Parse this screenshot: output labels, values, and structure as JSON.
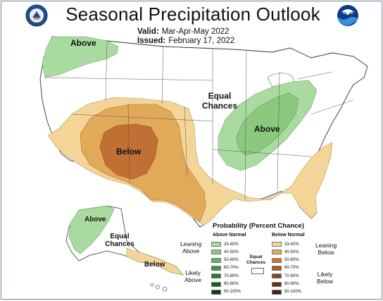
{
  "title": "Seasonal Precipitation Outlook",
  "valid": {
    "label": "Valid:",
    "value": "Mar-Apr-May 2022"
  },
  "issued": {
    "label": "Issued:",
    "value": "February 17, 2022"
  },
  "map_labels": {
    "above_nw": "Above",
    "equal_chances_1": "Equal",
    "equal_chances_2": "Chances",
    "above_east": "Above",
    "below_sw": "Below",
    "above_ak": "Above",
    "equal_ak_1": "Equal",
    "equal_ak_2": "Chances",
    "below_ak": "Below"
  },
  "legend": {
    "title": "Probability (Percent Chance)",
    "above_header": "Above Normal",
    "below_header": "Below Normal",
    "leaning_above_1": "Leaning",
    "leaning_above_2": "Above",
    "likely_above_1": "Likely",
    "likely_above_2": "Above",
    "leaning_below_1": "Leaning",
    "leaning_below_2": "Below",
    "likely_below_1": "Likely",
    "likely_below_2": "Below",
    "equal_1": "Equal",
    "equal_2": "Chances",
    "above_rows": [
      {
        "label": "33-40%",
        "color": "#a9dba0"
      },
      {
        "label": "40-50%",
        "color": "#8cc97e"
      },
      {
        "label": "50-60%",
        "color": "#5fb25a"
      },
      {
        "label": "60-70%",
        "color": "#3e9745"
      },
      {
        "label": "70-80%",
        "color": "#2a7b34"
      },
      {
        "label": "80-90%",
        "color": "#1b5e25"
      },
      {
        "label": "90-100%",
        "color": "#0e3d17"
      }
    ],
    "below_rows": [
      {
        "label": "33-40%",
        "color": "#f3d697"
      },
      {
        "label": "40-50%",
        "color": "#e0aa58"
      },
      {
        "label": "50-60%",
        "color": "#c47a34"
      },
      {
        "label": "60-70%",
        "color": "#b05b2a"
      },
      {
        "label": "70-80%",
        "color": "#8f4020"
      },
      {
        "label": "80-90%",
        "color": "#6b2e17"
      },
      {
        "label": "90-100%",
        "color": "#4a1f0f"
      }
    ]
  },
  "logos": {
    "left": "noaa-dept-commerce-seal-icon",
    "right": "noaa-logo-icon",
    "right_text": "NOAA"
  }
}
